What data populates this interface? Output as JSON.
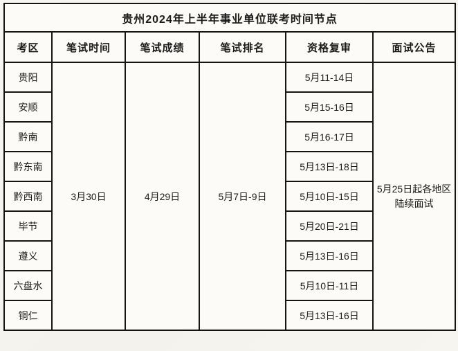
{
  "title": "贵州2024年上半年事业单位联考时间节点",
  "table": {
    "headers": [
      "考区",
      "笔试时间",
      "笔试成绩",
      "笔试排名",
      "资格复审",
      "面试公告"
    ],
    "merged": {
      "written_exam_time": "3月30日",
      "written_exam_score": "4月29日",
      "written_exam_rank": "5月7日-9日",
      "interview_notice": "5月25日起各地区陆续面试"
    },
    "rows": [
      {
        "region": "贵阳",
        "review": "5月11-14日"
      },
      {
        "region": "安顺",
        "review": "5月15-16日"
      },
      {
        "region": "黔南",
        "review": "5月16-17日"
      },
      {
        "region": "黔东南",
        "review": "5月13日-18日"
      },
      {
        "region": "黔西南",
        "review": "5月10日-15日"
      },
      {
        "region": "毕节",
        "review": "5月20日-21日"
      },
      {
        "region": "遵义",
        "review": "5月13日-16日"
      },
      {
        "region": "六盘水",
        "review": "5月10日-11日"
      },
      {
        "region": "铜仁",
        "review": "5月13日-16日"
      }
    ]
  },
  "colors": {
    "background": "#f6f4ef",
    "table_background": "#fcfbf7",
    "border": "#141414",
    "text": "#1b1b1b"
  }
}
